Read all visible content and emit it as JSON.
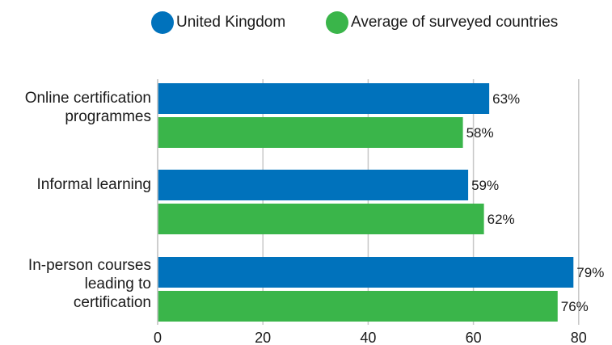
{
  "chart_data": {
    "type": "bar",
    "orientation": "horizontal",
    "categories": [
      [
        "Online certification",
        "programmes"
      ],
      [
        "Informal learning"
      ],
      [
        "In-person courses",
        "leading to",
        "certification"
      ]
    ],
    "series": [
      {
        "name": "United Kingdom",
        "color": "#0072bc",
        "values": [
          63,
          59,
          79
        ],
        "labels": [
          "63%",
          "59%",
          "79%"
        ]
      },
      {
        "name": "Average of surveyed countries",
        "color": "#3ab54a",
        "values": [
          58,
          62,
          76
        ],
        "labels": [
          "58%",
          "62%",
          "76%"
        ]
      }
    ],
    "xlim": [
      0,
      80
    ],
    "xticks": [
      "0",
      "20",
      "40",
      "60",
      "80"
    ],
    "xtick_values": [
      0,
      20,
      40,
      60,
      80
    ],
    "grid": true,
    "legend_position": "top"
  }
}
